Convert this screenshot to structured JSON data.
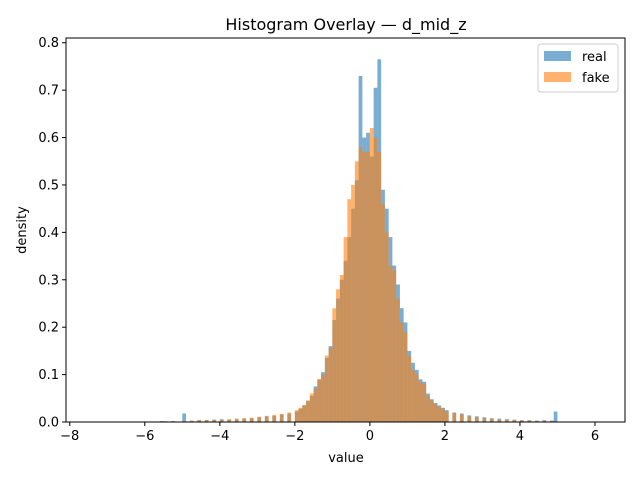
{
  "chart_data": {
    "type": "bar",
    "title": "Histogram Overlay — d_mid_z",
    "xlabel": "value",
    "ylabel": "density",
    "xlim": [
      -8.1,
      6.8
    ],
    "ylim": [
      0,
      0.81
    ],
    "xticks": [
      -8,
      -6,
      -4,
      -2,
      0,
      2,
      4,
      6
    ],
    "yticks": [
      0.0,
      0.1,
      0.2,
      0.3,
      0.4,
      0.5,
      0.6,
      0.7,
      0.8
    ],
    "legend": "top-right",
    "grid": false,
    "bin_width": 0.1,
    "series": [
      {
        "name": "real",
        "color": "#1f77b4",
        "opacity": 0.6,
        "bins": [
          [
            -7.2,
            0.001
          ],
          [
            -6.0,
            0.001
          ],
          [
            -5.6,
            0.002
          ],
          [
            -5.3,
            0.002
          ],
          [
            -5.0,
            0.018
          ],
          [
            -4.8,
            0.003
          ],
          [
            -4.6,
            0.004
          ],
          [
            -4.4,
            0.004
          ],
          [
            -4.2,
            0.005
          ],
          [
            -4.0,
            0.006
          ],
          [
            -3.8,
            0.005
          ],
          [
            -3.6,
            0.006
          ],
          [
            -3.4,
            0.007
          ],
          [
            -3.2,
            0.008
          ],
          [
            -3.0,
            0.01
          ],
          [
            -2.8,
            0.012
          ],
          [
            -2.6,
            0.013
          ],
          [
            -2.4,
            0.016
          ],
          [
            -2.2,
            0.018
          ],
          [
            -2.0,
            0.022
          ],
          [
            -1.9,
            0.028
          ],
          [
            -1.8,
            0.035
          ],
          [
            -1.7,
            0.045
          ],
          [
            -1.6,
            0.055
          ],
          [
            -1.5,
            0.075
          ],
          [
            -1.4,
            0.09
          ],
          [
            -1.3,
            0.105
          ],
          [
            -1.2,
            0.135
          ],
          [
            -1.1,
            0.16
          ],
          [
            -1.0,
            0.215
          ],
          [
            -0.9,
            0.26
          ],
          [
            -0.8,
            0.3
          ],
          [
            -0.7,
            0.34
          ],
          [
            -0.6,
            0.39
          ],
          [
            -0.5,
            0.45
          ],
          [
            -0.4,
            0.51
          ],
          [
            -0.3,
            0.73
          ],
          [
            -0.2,
            0.6
          ],
          [
            -0.1,
            0.61
          ],
          [
            0.0,
            0.56
          ],
          [
            0.1,
            0.705
          ],
          [
            0.2,
            0.765
          ],
          [
            0.3,
            0.49
          ],
          [
            0.4,
            0.45
          ],
          [
            0.5,
            0.39
          ],
          [
            0.6,
            0.33
          ],
          [
            0.7,
            0.29
          ],
          [
            0.8,
            0.24
          ],
          [
            0.9,
            0.21
          ],
          [
            1.0,
            0.15
          ],
          [
            1.1,
            0.125
          ],
          [
            1.2,
            0.11
          ],
          [
            1.3,
            0.09
          ],
          [
            1.4,
            0.085
          ],
          [
            1.5,
            0.06
          ],
          [
            1.6,
            0.048
          ],
          [
            1.7,
            0.04
          ],
          [
            1.8,
            0.035
          ],
          [
            1.9,
            0.03
          ],
          [
            2.0,
            0.025
          ],
          [
            2.2,
            0.02
          ],
          [
            2.4,
            0.018
          ],
          [
            2.6,
            0.014
          ],
          [
            2.8,
            0.012
          ],
          [
            3.0,
            0.01
          ],
          [
            3.2,
            0.008
          ],
          [
            3.4,
            0.007
          ],
          [
            3.6,
            0.006
          ],
          [
            3.8,
            0.005
          ],
          [
            4.0,
            0.004
          ],
          [
            4.2,
            0.004
          ],
          [
            4.4,
            0.003
          ],
          [
            4.6,
            0.004
          ],
          [
            4.8,
            0.003
          ],
          [
            4.9,
            0.022
          ],
          [
            5.4,
            0.001
          ],
          [
            6.0,
            0.001
          ]
        ]
      },
      {
        "name": "fake",
        "color": "#ff7f0e",
        "opacity": 0.6,
        "bins": [
          [
            -7.4,
            0.001
          ],
          [
            -6.6,
            0.001
          ],
          [
            -6.0,
            0.001
          ],
          [
            -5.5,
            0.002
          ],
          [
            -5.0,
            0.002
          ],
          [
            -4.8,
            0.002
          ],
          [
            -4.6,
            0.004
          ],
          [
            -4.4,
            0.004
          ],
          [
            -4.2,
            0.005
          ],
          [
            -4.0,
            0.004
          ],
          [
            -3.8,
            0.006
          ],
          [
            -3.6,
            0.007
          ],
          [
            -3.4,
            0.008
          ],
          [
            -3.2,
            0.009
          ],
          [
            -3.0,
            0.011
          ],
          [
            -2.8,
            0.013
          ],
          [
            -2.6,
            0.015
          ],
          [
            -2.4,
            0.017
          ],
          [
            -2.2,
            0.02
          ],
          [
            -2.0,
            0.025
          ],
          [
            -1.9,
            0.03
          ],
          [
            -1.8,
            0.036
          ],
          [
            -1.7,
            0.045
          ],
          [
            -1.6,
            0.06
          ],
          [
            -1.5,
            0.07
          ],
          [
            -1.4,
            0.09
          ],
          [
            -1.3,
            0.1
          ],
          [
            -1.2,
            0.14
          ],
          [
            -1.1,
            0.155
          ],
          [
            -1.0,
            0.24
          ],
          [
            -0.9,
            0.28
          ],
          [
            -0.8,
            0.31
          ],
          [
            -0.7,
            0.39
          ],
          [
            -0.6,
            0.47
          ],
          [
            -0.5,
            0.5
          ],
          [
            -0.4,
            0.55
          ],
          [
            -0.3,
            0.58
          ],
          [
            -0.2,
            0.57
          ],
          [
            -0.1,
            0.57
          ],
          [
            0.0,
            0.62
          ],
          [
            0.1,
            0.6
          ],
          [
            0.2,
            0.57
          ],
          [
            0.3,
            0.46
          ],
          [
            0.4,
            0.4
          ],
          [
            0.5,
            0.33
          ],
          [
            0.6,
            0.32
          ],
          [
            0.7,
            0.26
          ],
          [
            0.8,
            0.21
          ],
          [
            0.9,
            0.19
          ],
          [
            1.0,
            0.14
          ],
          [
            1.1,
            0.11
          ],
          [
            1.2,
            0.1
          ],
          [
            1.3,
            0.085
          ],
          [
            1.4,
            0.08
          ],
          [
            1.5,
            0.055
          ],
          [
            1.6,
            0.045
          ],
          [
            1.7,
            0.038
          ],
          [
            1.8,
            0.032
          ],
          [
            1.9,
            0.028
          ],
          [
            2.0,
            0.022
          ],
          [
            2.2,
            0.019
          ],
          [
            2.4,
            0.016
          ],
          [
            2.6,
            0.012
          ],
          [
            2.8,
            0.01
          ],
          [
            3.0,
            0.008
          ],
          [
            3.2,
            0.007
          ],
          [
            3.4,
            0.005
          ],
          [
            3.6,
            0.005
          ],
          [
            3.8,
            0.004
          ],
          [
            4.0,
            0.003
          ],
          [
            4.2,
            0.003
          ],
          [
            4.4,
            0.002
          ],
          [
            4.6,
            0.002
          ],
          [
            4.8,
            0.002
          ],
          [
            5.2,
            0.001
          ],
          [
            6.0,
            0.001
          ],
          [
            6.4,
            0.001
          ]
        ]
      }
    ]
  }
}
